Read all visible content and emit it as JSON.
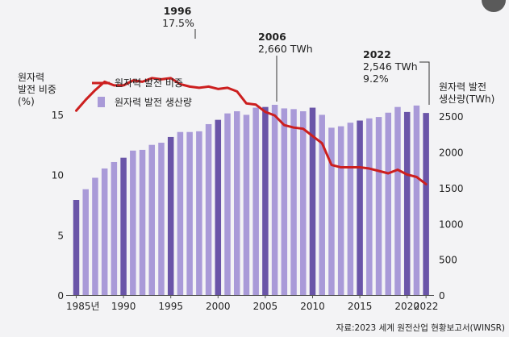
{
  "chart_data": {
    "type": "bar+line",
    "categories": [
      1985,
      1986,
      1987,
      1988,
      1989,
      1990,
      1991,
      1992,
      1993,
      1994,
      1995,
      1996,
      1997,
      1998,
      1999,
      2000,
      2001,
      2002,
      2003,
      2004,
      2005,
      2006,
      2007,
      2008,
      2009,
      2010,
      2011,
      2012,
      2013,
      2014,
      2015,
      2016,
      2017,
      2018,
      2019,
      2020,
      2021,
      2022
    ],
    "x_tick_labels": [
      {
        "year": 1985,
        "label": "1985년"
      },
      {
        "year": 1990,
        "label": "1990"
      },
      {
        "year": 1995,
        "label": "1995"
      },
      {
        "year": 2000,
        "label": "2000"
      },
      {
        "year": 2005,
        "label": "2005"
      },
      {
        "year": 2010,
        "label": "2010"
      },
      {
        "year": 2015,
        "label": "2015"
      },
      {
        "year": 2020,
        "label": "2020"
      },
      {
        "year": 2022,
        "label": "2022"
      }
    ],
    "left_axis": {
      "label_lines": [
        "원자력",
        "발전 비중",
        "(%)"
      ],
      "ticks": [
        0,
        5,
        10,
        15
      ],
      "range": [
        0,
        20
      ]
    },
    "right_axis": {
      "label_lines": [
        "원자력 발전",
        "생산량(TWh)"
      ],
      "ticks": [
        0,
        500,
        1000,
        1500,
        2000,
        2500
      ],
      "range": [
        0,
        2500
      ]
    },
    "series": [
      {
        "name": "원자력 발전 비중",
        "type": "line",
        "axis": "left",
        "values": [
          15.3,
          16.2,
          17.0,
          17.7,
          17.4,
          17.4,
          17.8,
          17.7,
          18.0,
          17.9,
          18.0,
          17.5,
          17.3,
          17.2,
          17.3,
          17.1,
          17.2,
          16.9,
          15.9,
          15.8,
          15.2,
          14.9,
          14.1,
          13.9,
          13.8,
          13.2,
          12.6,
          10.8,
          10.6,
          10.6,
          10.6,
          10.5,
          10.3,
          10.1,
          10.4,
          10.0,
          9.8,
          9.2
        ]
      },
      {
        "name": "원자력 발전 생산량",
        "type": "bar",
        "axis": "right",
        "values": [
          1330,
          1480,
          1640,
          1770,
          1860,
          1920,
          2020,
          2030,
          2100,
          2130,
          2210,
          2280,
          2280,
          2290,
          2390,
          2450,
          2540,
          2570,
          2520,
          2620,
          2630,
          2660,
          2610,
          2600,
          2570,
          2620,
          2520,
          2340,
          2360,
          2410,
          2440,
          2470,
          2490,
          2550,
          2630,
          2560,
          2650,
          2546
        ]
      }
    ],
    "annotations": [
      {
        "year": 1996,
        "label": "1996",
        "value": "17.5%"
      },
      {
        "year": 2006,
        "label": "2006",
        "value": "2,660 TWh"
      },
      {
        "year": 2022,
        "label": "2022",
        "value": "2,546 TWh",
        "value2": "9.2%"
      }
    ],
    "legend_position": "top-left",
    "source": "자료:2023 세계 원전산업 현황보고서(WINSR)",
    "colors": {
      "bar_light": "#a99ad8",
      "bar_dark": "#6a55a8",
      "line": "#cc1f1f",
      "background": "#f3f3f5"
    }
  }
}
